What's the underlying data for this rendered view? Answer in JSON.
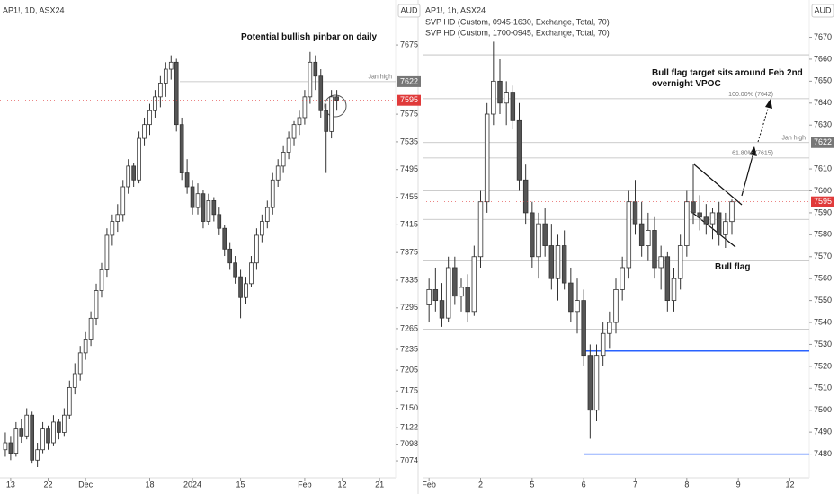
{
  "chart_data": [
    {
      "type": "candlestick",
      "title": "AP1!, 1D, ASX24",
      "currency": "AUD",
      "annotations": [
        "Potential bullish pinbar on daily"
      ],
      "ylim": [
        7052,
        7740
      ],
      "yticks": [
        7675,
        7575,
        7535,
        7495,
        7455,
        7415,
        7375,
        7335,
        7295,
        7265,
        7235,
        7205,
        7175,
        7150,
        7122,
        7098,
        7074
      ],
      "xlim": [
        -1,
        73
      ],
      "xticks": [
        {
          "value": 1,
          "label": "13"
        },
        {
          "value": 8,
          "label": "22"
        },
        {
          "value": 15,
          "label": "Dec"
        },
        {
          "value": 27,
          "label": "18"
        },
        {
          "value": 35,
          "label": "2024"
        },
        {
          "value": 44,
          "label": "15"
        },
        {
          "value": 56,
          "label": "Feb"
        },
        {
          "value": 63,
          "label": "12"
        },
        {
          "value": 70,
          "label": "21"
        }
      ],
      "last_price": 7595,
      "levels": [
        {
          "value": 7622,
          "label": "Jan high"
        }
      ],
      "ohlc": [
        [
          7090,
          7115,
          7080,
          7100
        ],
        [
          7100,
          7110,
          7075,
          7085
        ],
        [
          7085,
          7130,
          7080,
          7120
        ],
        [
          7120,
          7135,
          7100,
          7110
        ],
        [
          7110,
          7150,
          7105,
          7140
        ],
        [
          7140,
          7145,
          7070,
          7075
        ],
        [
          7075,
          7100,
          7065,
          7090
        ],
        [
          7090,
          7130,
          7085,
          7120
        ],
        [
          7120,
          7125,
          7090,
          7100
        ],
        [
          7100,
          7140,
          7095,
          7130
        ],
        [
          7130,
          7135,
          7105,
          7115
        ],
        [
          7115,
          7150,
          7110,
          7140
        ],
        [
          7140,
          7190,
          7135,
          7180
        ],
        [
          7180,
          7215,
          7170,
          7200
        ],
        [
          7200,
          7240,
          7190,
          7230
        ],
        [
          7230,
          7260,
          7220,
          7250
        ],
        [
          7250,
          7290,
          7240,
          7280
        ],
        [
          7280,
          7330,
          7270,
          7320
        ],
        [
          7320,
          7360,
          7310,
          7350
        ],
        [
          7350,
          7410,
          7340,
          7400
        ],
        [
          7400,
          7430,
          7385,
          7420
        ],
        [
          7420,
          7445,
          7405,
          7430
        ],
        [
          7430,
          7480,
          7420,
          7470
        ],
        [
          7470,
          7510,
          7460,
          7500
        ],
        [
          7500,
          7505,
          7470,
          7480
        ],
        [
          7480,
          7550,
          7475,
          7540
        ],
        [
          7540,
          7570,
          7530,
          7560
        ],
        [
          7560,
          7590,
          7545,
          7580
        ],
        [
          7580,
          7610,
          7570,
          7600
        ],
        [
          7600,
          7630,
          7585,
          7620
        ],
        [
          7620,
          7650,
          7600,
          7640
        ],
        [
          7640,
          7660,
          7625,
          7650
        ],
        [
          7650,
          7655,
          7550,
          7560
        ],
        [
          7560,
          7570,
          7480,
          7490
        ],
        [
          7490,
          7510,
          7460,
          7470
        ],
        [
          7470,
          7480,
          7430,
          7440
        ],
        [
          7440,
          7475,
          7430,
          7460
        ],
        [
          7460,
          7465,
          7410,
          7420
        ],
        [
          7420,
          7460,
          7415,
          7450
        ],
        [
          7450,
          7455,
          7420,
          7430
        ],
        [
          7430,
          7440,
          7400,
          7410
        ],
        [
          7410,
          7415,
          7370,
          7380
        ],
        [
          7380,
          7390,
          7350,
          7360
        ],
        [
          7360,
          7370,
          7330,
          7340
        ],
        [
          7340,
          7350,
          7280,
          7310
        ],
        [
          7310,
          7340,
          7300,
          7330
        ],
        [
          7330,
          7370,
          7325,
          7360
        ],
        [
          7360,
          7410,
          7350,
          7400
        ],
        [
          7400,
          7430,
          7390,
          7420
        ],
        [
          7420,
          7450,
          7410,
          7440
        ],
        [
          7440,
          7490,
          7430,
          7480
        ],
        [
          7480,
          7510,
          7470,
          7500
        ],
        [
          7500,
          7530,
          7490,
          7520
        ],
        [
          7520,
          7550,
          7510,
          7540
        ],
        [
          7540,
          7565,
          7530,
          7560
        ],
        [
          7560,
          7580,
          7545,
          7570
        ],
        [
          7570,
          7610,
          7560,
          7600
        ],
        [
          7600,
          7665,
          7590,
          7650
        ],
        [
          7650,
          7660,
          7610,
          7630
        ],
        [
          7630,
          7640,
          7570,
          7580
        ],
        [
          7580,
          7590,
          7490,
          7550
        ],
        [
          7550,
          7610,
          7540,
          7600
        ],
        [
          7600,
          7610,
          7580,
          7595
        ]
      ]
    },
    {
      "type": "candlestick",
      "title": "AP1!, 1h, ASX24",
      "currency": "AUD",
      "subtitles": [
        "SVP HD (Custom, 0945-1630, Exchange, Total, 70)",
        "SVP HD (Custom, 1700-0945, Exchange, Total, 70)"
      ],
      "annotations": [
        "Bull flag target sits around Feb 2nd overnight VPOC",
        "Bull flag"
      ],
      "ylim": [
        7470,
        7687
      ],
      "yticks": [
        7670,
        7660,
        7650,
        7640,
        7630,
        7610,
        7600,
        7590,
        7580,
        7570,
        7560,
        7550,
        7540,
        7530,
        7520,
        7510,
        7500,
        7490,
        7480
      ],
      "xlim": [
        -1,
        59
      ],
      "xticks": [
        {
          "value": 0,
          "label": "Feb"
        },
        {
          "value": 8,
          "label": "2"
        },
        {
          "value": 16,
          "label": "5"
        },
        {
          "value": 24,
          "label": "6"
        },
        {
          "value": 32,
          "label": "7"
        },
        {
          "value": 40,
          "label": "8"
        },
        {
          "value": 48,
          "label": "9"
        },
        {
          "value": 56,
          "label": "12"
        }
      ],
      "last_price": 7595,
      "levels": [
        {
          "value": 7622,
          "label": "Jan high"
        },
        {
          "value": 7642,
          "label": "100.00% (7642)"
        },
        {
          "value": 7615,
          "label": "61.80% (7615)"
        },
        {
          "value": 7662
        },
        {
          "value": 7600
        },
        {
          "value": 7587
        },
        {
          "value": 7568
        },
        {
          "value": 7537
        }
      ],
      "vpoc": [
        7527,
        7480
      ],
      "ohlc": [
        [
          7548,
          7560,
          7540,
          7555
        ],
        [
          7555,
          7565,
          7545,
          7550
        ],
        [
          7550,
          7558,
          7538,
          7542
        ],
        [
          7542,
          7570,
          7540,
          7565
        ],
        [
          7565,
          7570,
          7548,
          7552
        ],
        [
          7552,
          7560,
          7545,
          7556
        ],
        [
          7556,
          7562,
          7540,
          7545
        ],
        [
          7545,
          7575,
          7543,
          7570
        ],
        [
          7570,
          7600,
          7565,
          7595
        ],
        [
          7595,
          7640,
          7590,
          7635
        ],
        [
          7635,
          7668,
          7630,
          7650
        ],
        [
          7650,
          7660,
          7635,
          7640
        ],
        [
          7640,
          7650,
          7630,
          7645
        ],
        [
          7645,
          7648,
          7628,
          7632
        ],
        [
          7632,
          7640,
          7600,
          7605
        ],
        [
          7605,
          7612,
          7585,
          7590
        ],
        [
          7590,
          7595,
          7565,
          7570
        ],
        [
          7570,
          7590,
          7560,
          7585
        ],
        [
          7585,
          7592,
          7570,
          7575
        ],
        [
          7575,
          7585,
          7555,
          7560
        ],
        [
          7560,
          7580,
          7550,
          7575
        ],
        [
          7575,
          7582,
          7555,
          7558
        ],
        [
          7558,
          7565,
          7540,
          7545
        ],
        [
          7545,
          7560,
          7535,
          7550
        ],
        [
          7550,
          7555,
          7520,
          7525
        ],
        [
          7525,
          7530,
          7487,
          7500
        ],
        [
          7500,
          7530,
          7495,
          7525
        ],
        [
          7525,
          7540,
          7520,
          7535
        ],
        [
          7535,
          7545,
          7528,
          7540
        ],
        [
          7540,
          7560,
          7535,
          7555
        ],
        [
          7555,
          7570,
          7550,
          7565
        ],
        [
          7565,
          7600,
          7560,
          7595
        ],
        [
          7595,
          7605,
          7580,
          7585
        ],
        [
          7585,
          7595,
          7570,
          7575
        ],
        [
          7575,
          7590,
          7568,
          7582
        ],
        [
          7582,
          7588,
          7560,
          7565
        ],
        [
          7565,
          7575,
          7555,
          7570
        ],
        [
          7570,
          7572,
          7545,
          7550
        ],
        [
          7550,
          7565,
          7545,
          7560
        ],
        [
          7560,
          7580,
          7555,
          7575
        ],
        [
          7575,
          7600,
          7570,
          7595
        ],
        [
          7595,
          7612,
          7585,
          7590
        ],
        [
          7590,
          7598,
          7582,
          7588
        ],
        [
          7588,
          7594,
          7580,
          7585
        ],
        [
          7585,
          7592,
          7578,
          7590
        ],
        [
          7590,
          7595,
          7575,
          7580
        ],
        [
          7580,
          7590,
          7574,
          7586
        ],
        [
          7586,
          7596,
          7580,
          7595
        ]
      ]
    }
  ]
}
